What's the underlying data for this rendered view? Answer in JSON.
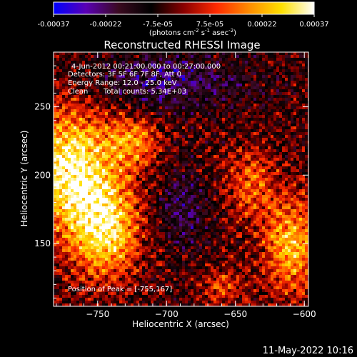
{
  "chart_data": {
    "type": "heatmap",
    "title": "Reconstructed RHESSI Image",
    "xlabel": "Heliocentric X (arcsec)",
    "ylabel": "Heliocentric Y (arcsec)",
    "xlim": [
      -782,
      -597
    ],
    "ylim": [
      104,
      290
    ],
    "x_ticks": [
      -750,
      -700,
      -650,
      -600
    ],
    "y_ticks": [
      150,
      200,
      250
    ],
    "colorbar": {
      "range": [
        -0.00037,
        0.00037
      ],
      "ticks": [
        "-0.00037",
        "-0.00022",
        "-7.5e-05",
        "7.5e-05",
        "0.00022",
        "0.00037"
      ],
      "units_prefix": "(photons cm",
      "units_sup1": "-2",
      "units_mid": " s",
      "units_sup2": "-1",
      "units_mid2": " asec",
      "units_sup3": "-2",
      "units_suffix": ")",
      "colormap": [
        "#0000ff",
        "#5a00b4",
        "#3a0a20",
        "#000000",
        "#8a0000",
        "#ff2a00",
        "#ff8c00",
        "#ffe000",
        "#ffffff"
      ]
    },
    "annotations": {
      "time_range": "4-Jun-2012 00:21:00.000 to 00:27:00.000",
      "detectors": "Detectors: 3F 5F 6F 7F 8F, Att 0",
      "energy": "Energy Range: 12.0 - 25.0 keV",
      "algorithm": "Clean",
      "counts": "Total counts: 5.34E+03",
      "peak": "Position of Peak = [-755,167]"
    },
    "peak_position": [
      -755,
      167
    ],
    "grid": false
  },
  "footer": {
    "timestamp": "11-May-2022 10:16"
  }
}
